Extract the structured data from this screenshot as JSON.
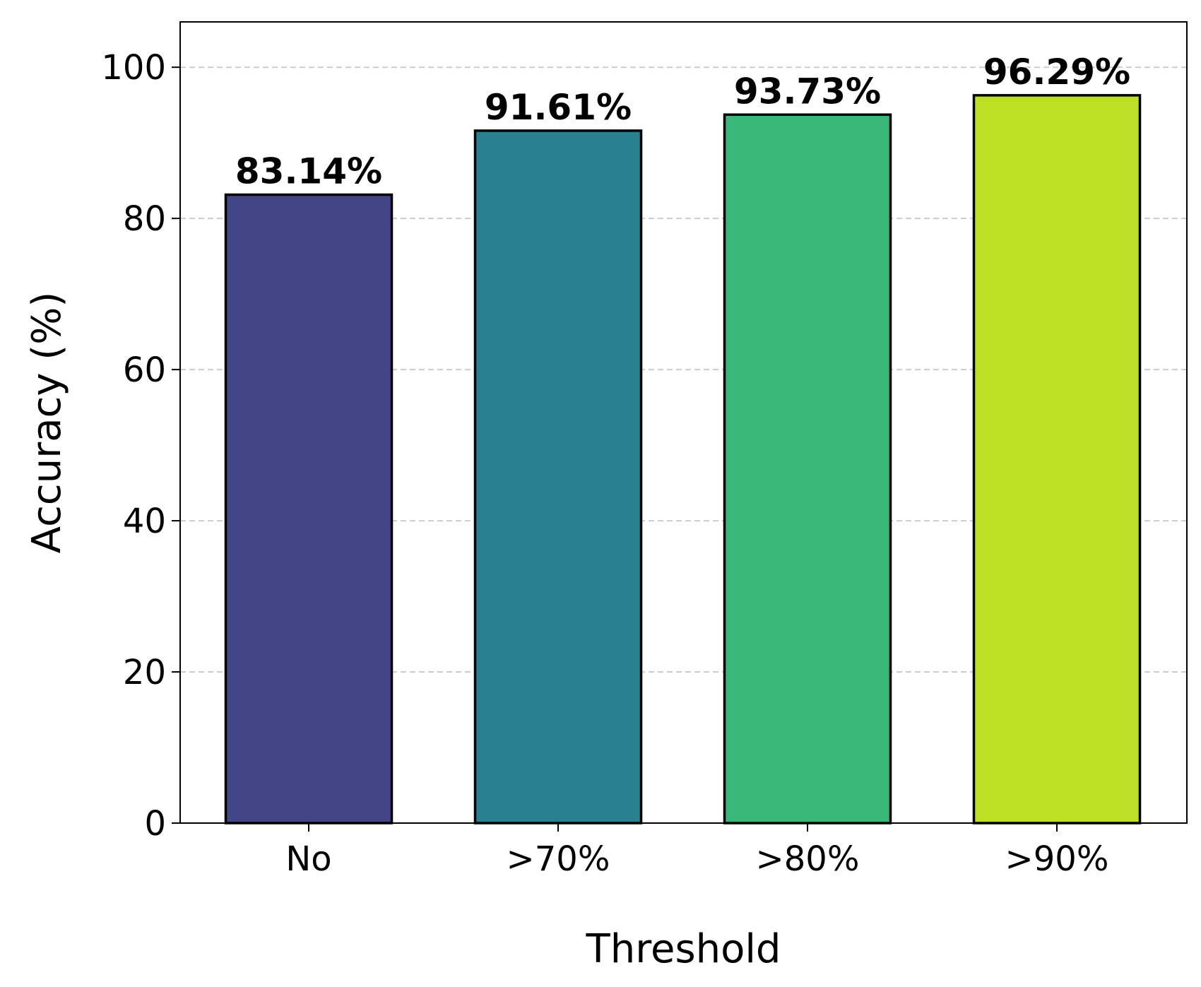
{
  "chart_data": {
    "type": "bar",
    "title": "",
    "xlabel": "Threshold",
    "ylabel": "Accuracy (%)",
    "categories": [
      "No",
      ">70%",
      ">80%",
      ">90%"
    ],
    "values": [
      83.14,
      91.61,
      93.73,
      96.29
    ],
    "value_labels": [
      "83.14%",
      "91.61%",
      "93.73%",
      "96.29%"
    ],
    "colors": [
      "#424686",
      "#28818e",
      "#38b779",
      "#bddf26"
    ],
    "ylim": [
      0,
      106
    ],
    "yticks": [
      0,
      20,
      40,
      60,
      80,
      100
    ],
    "grid": "y-dashed",
    "legend": "none"
  }
}
